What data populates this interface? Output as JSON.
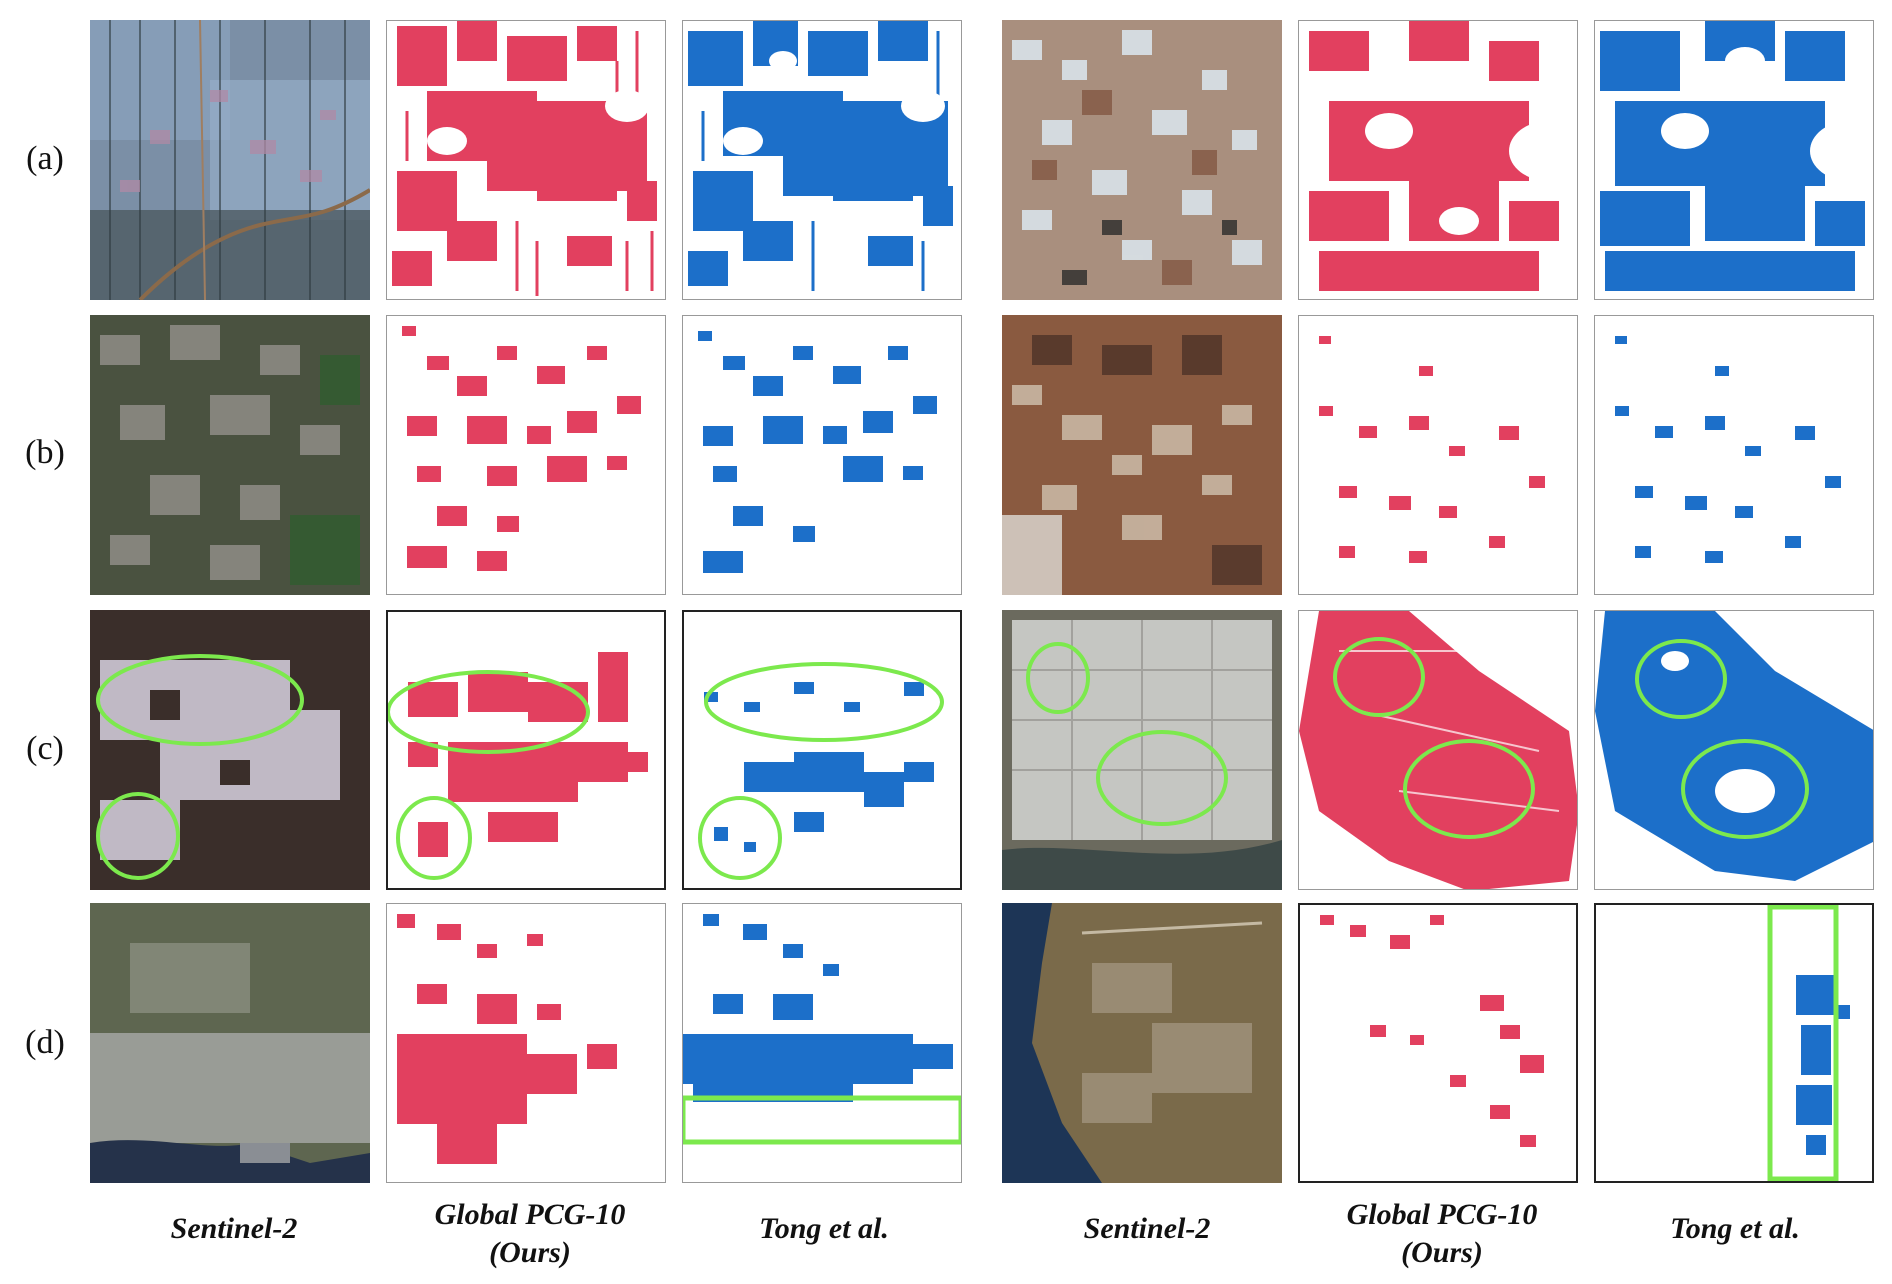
{
  "row_labels": [
    "(a)",
    "(b)",
    "(c)",
    "(d)"
  ],
  "column_labels": [
    {
      "line1": "Sentinel-2",
      "line2": ""
    },
    {
      "line1": "Global PCG-10",
      "line2": "(Ours)"
    },
    {
      "line1": "Tong et al.",
      "line2": ""
    },
    {
      "line1": "Sentinel-2",
      "line2": ""
    },
    {
      "line1": "Global PCG-10",
      "line2": "(Ours)"
    },
    {
      "line1": "Tong et al.",
      "line2": ""
    }
  ],
  "colors": {
    "ours": "#e2405f",
    "tong": "#1c6fc9",
    "highlight": "#7ce94d",
    "background": "#ffffff"
  },
  "panel_kinds": [
    "satellite-image",
    "greenhouse-map-ours",
    "greenhouse-map-tong"
  ]
}
